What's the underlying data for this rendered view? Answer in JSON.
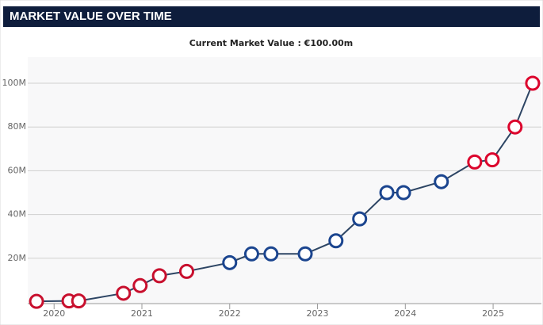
{
  "chart_data": {
    "type": "line",
    "title": "MARKET VALUE OVER TIME",
    "subtitle": "Current Market Value : €100.00m",
    "x": [
      2019.8,
      2020.17,
      2020.28,
      2020.79,
      2020.98,
      2021.2,
      2021.51,
      2022.0,
      2022.25,
      2022.47,
      2022.86,
      2023.21,
      2023.48,
      2023.79,
      2023.98,
      2024.41,
      2024.79,
      2024.99,
      2025.25,
      2025.45
    ],
    "series": [
      {
        "color": "#2d4564",
        "values": [
          0.3,
          0.5,
          0.5,
          4,
          7.5,
          12,
          14,
          18,
          22,
          22,
          22,
          28,
          38,
          50,
          50,
          55,
          64,
          65,
          80,
          100
        ],
        "point_colors": [
          "#c8102e",
          "#c8102e",
          "#c8102e",
          "#c8102e",
          "#c8102e",
          "#c8102e",
          "#c8102e",
          "#1b458f",
          "#1b458f",
          "#1b458f",
          "#1b458f",
          "#1b458f",
          "#1b458f",
          "#1b458f",
          "#1b458f",
          "#1b458f",
          "#dc052d",
          "#dc052d",
          "#dc052d",
          "#dc052d"
        ]
      }
    ],
    "xlim": [
      2019.7,
      2025.55
    ],
    "xticks": [
      2020,
      2021,
      2022,
      2023,
      2024,
      2025
    ],
    "ylim": [
      0,
      105
    ],
    "yticks": [
      {
        "value": 20,
        "label": "20M"
      },
      {
        "value": 40,
        "label": "40M"
      },
      {
        "value": 60,
        "label": "60M"
      },
      {
        "value": 80,
        "label": "80M"
      },
      {
        "value": 100,
        "label": "100M"
      }
    ],
    "grid": true
  }
}
